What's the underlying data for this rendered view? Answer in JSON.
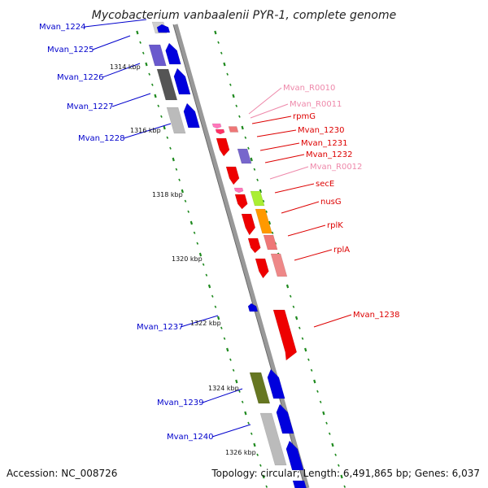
{
  "header": {
    "title": "Mycobacterium vanbaalenii PYR-1, complete genome"
  },
  "footer": {
    "accession": "Accession: NC_008726",
    "summary": "Topology: circular; Length: 6,491,865 bp; Genes: 6,037"
  },
  "colors": {
    "backbone": "#8a8a8a",
    "tick_green": "#1f8a1f",
    "label_blue": "#0000cc",
    "label_red": "#dd0000",
    "label_pink": "#ee88aa"
  },
  "scale_labels": [
    "1314 kbp",
    "1316 kbp",
    "1318 kbp",
    "1320 kbp",
    "1322 kbp",
    "1324 kbp",
    "1326 kbp"
  ],
  "gene_labels": [
    {
      "text": "Mvan_1224",
      "color": "blue"
    },
    {
      "text": "Mvan_1225",
      "color": "blue"
    },
    {
      "text": "Mvan_1226",
      "color": "blue"
    },
    {
      "text": "Mvan_1227",
      "color": "blue"
    },
    {
      "text": "Mvan_1228",
      "color": "blue"
    },
    {
      "text": "Mvan_R0010",
      "color": "pink"
    },
    {
      "text": "Mvan_R0011",
      "color": "pink"
    },
    {
      "text": "rpmG",
      "color": "red"
    },
    {
      "text": "Mvan_1230",
      "color": "red"
    },
    {
      "text": "Mvan_1231",
      "color": "red"
    },
    {
      "text": "Mvan_1232",
      "color": "red"
    },
    {
      "text": "Mvan_R0012",
      "color": "pink"
    },
    {
      "text": "secE",
      "color": "red"
    },
    {
      "text": "nusG",
      "color": "red"
    },
    {
      "text": "rplK",
      "color": "red"
    },
    {
      "text": "rplA",
      "color": "red"
    },
    {
      "text": "Mvan_1238",
      "color": "red"
    },
    {
      "text": "Mvan_1237",
      "color": "blue"
    },
    {
      "text": "Mvan_1239",
      "color": "blue"
    },
    {
      "text": "Mvan_1240",
      "color": "blue"
    }
  ]
}
